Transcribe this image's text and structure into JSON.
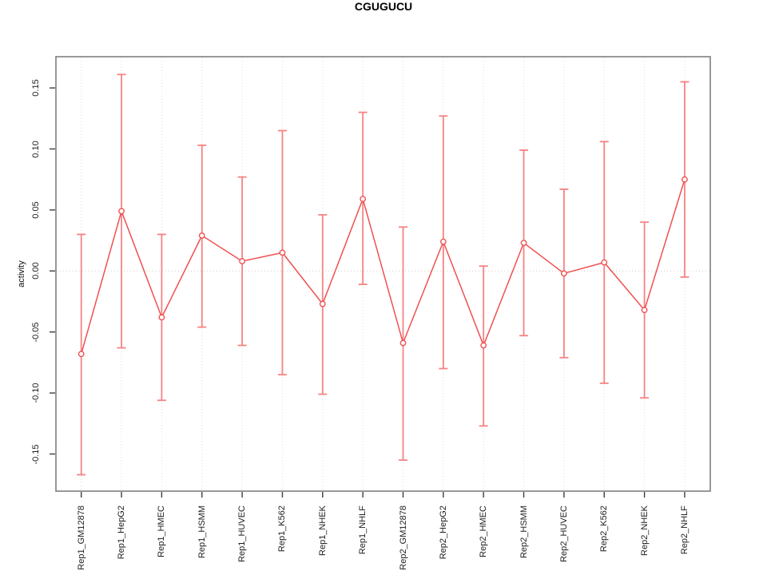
{
  "chart_data": {
    "type": "line",
    "title": "CGUGUCU",
    "xlabel": "",
    "ylabel": "activity",
    "ylim": [
      -0.18,
      0.176
    ],
    "grid": true,
    "zero_line": true,
    "marker": "open-circle",
    "legend": "none",
    "y_tick_labels": [
      "0.15",
      "0.10",
      "0.05",
      "0.00",
      "-0.05",
      "-0.10",
      "-0.15"
    ],
    "y_tick_values": [
      0.15,
      0.1,
      0.05,
      0.0,
      -0.05,
      -0.1,
      -0.15
    ],
    "categories": [
      "Rep1_GM12878",
      "Rep1_HepG2",
      "Rep1_HMEC",
      "Rep1_HSMM",
      "Rep1_HUVEC",
      "Rep1_K562",
      "Rep1_NHEK",
      "Rep1_NHLF",
      "Rep2_GM12878",
      "Rep2_HepG2",
      "Rep2_HMEC",
      "Rep2_HSMM",
      "Rep2_HUVEC",
      "Rep2_K562",
      "Rep2_NHEK",
      "Rep2_NHLF"
    ],
    "series": [
      {
        "name": "activity",
        "values": [
          -0.068,
          0.049,
          -0.038,
          0.029,
          0.008,
          0.015,
          -0.027,
          0.059,
          -0.059,
          0.024,
          -0.061,
          0.023,
          -0.002,
          0.007,
          -0.032,
          0.075
        ],
        "error_high": [
          0.03,
          0.161,
          0.03,
          0.103,
          0.077,
          0.115,
          0.046,
          0.13,
          0.036,
          0.127,
          0.004,
          0.099,
          0.067,
          0.106,
          0.04,
          0.155
        ],
        "error_low": [
          -0.167,
          -0.063,
          -0.106,
          -0.046,
          -0.061,
          -0.085,
          -0.101,
          -0.011,
          -0.155,
          -0.08,
          -0.127,
          -0.053,
          -0.071,
          -0.092,
          -0.104,
          -0.005
        ]
      }
    ],
    "colors": {
      "series_line": "#f05050",
      "marker": "#f05050",
      "error_bar": "#f58383",
      "grid": "#dedede",
      "zero_line": "#d9cbcb",
      "box": "#7f7f7f",
      "tick": "#3f3f3f",
      "text": "#1c1c1c"
    }
  }
}
